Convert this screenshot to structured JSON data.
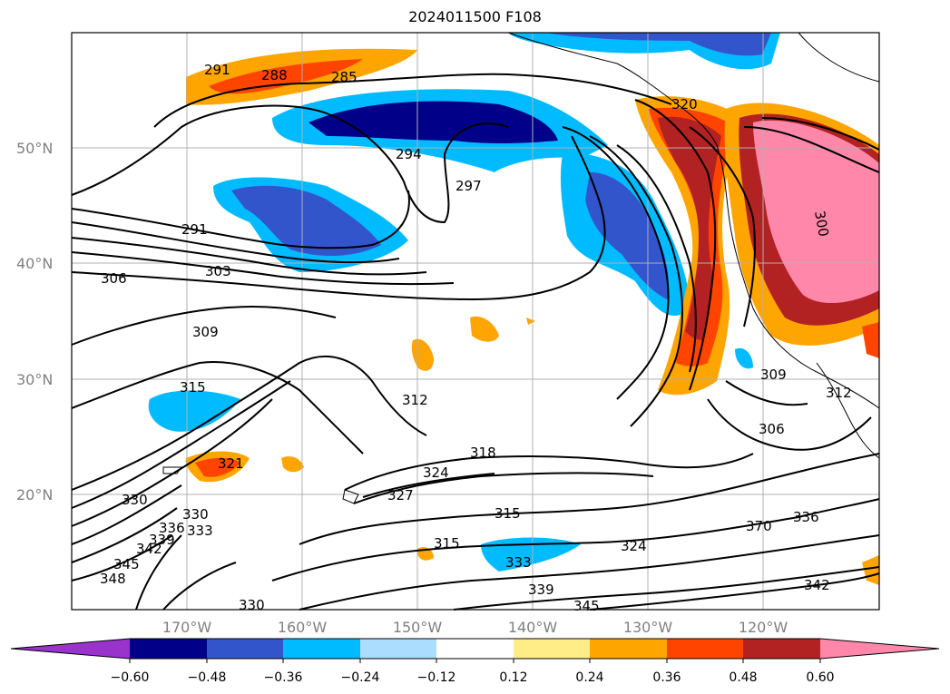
{
  "title": "2024011500 F108",
  "map": {
    "lat_ticks": [
      "50°N",
      "40°N",
      "30°N",
      "20°N"
    ],
    "lon_ticks": [
      "170°W",
      "160°W",
      "150°W",
      "140°W",
      "130°W",
      "120°W"
    ],
    "contour_labels": [
      "291",
      "288",
      "285",
      "294",
      "297",
      "320",
      "291",
      "303",
      "306",
      "309",
      "315",
      "312",
      "318",
      "324",
      "321",
      "327",
      "330",
      "330",
      "336",
      "333",
      "339",
      "342",
      "345",
      "348",
      "315",
      "315",
      "333",
      "339",
      "345",
      "330",
      "324",
      "306",
      "309",
      "312",
      "370",
      "336",
      "342",
      "300"
    ]
  },
  "colorbar": {
    "ticks": [
      "−0.60",
      "−0.48",
      "−0.36",
      "−0.24",
      "−0.12",
      "0.12",
      "0.24",
      "0.36",
      "0.48",
      "0.60"
    ],
    "colors": [
      "#9933cc",
      "#000088",
      "#3355cc",
      "#00bbff",
      "#aaddff",
      "#ffffff",
      "#ffee88",
      "#ffa500",
      "#ff4400",
      "#b22222",
      "#ff88aa"
    ]
  },
  "colors": {
    "dark_blue": "#000088",
    "blue": "#3355cc",
    "cyan": "#00bbff",
    "light_blue": "#aaddff",
    "yellow": "#ffee88",
    "orange": "#ffa500",
    "red_orange": "#ff4400",
    "dark_red": "#b22222",
    "pink": "#ff88aa"
  }
}
